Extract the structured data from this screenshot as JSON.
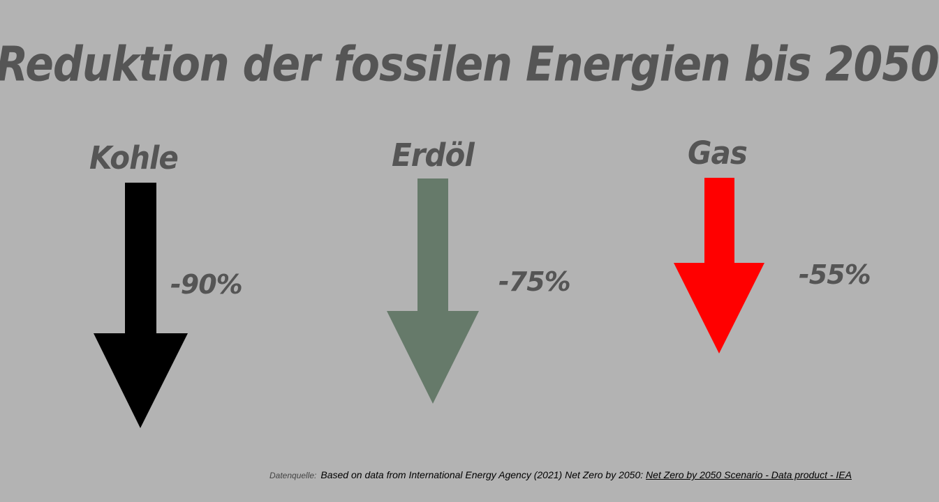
{
  "slide": {
    "title": "Reduktion der fossilen Energien bis 2050"
  },
  "items": [
    {
      "label": "Kohle",
      "reduction": "-90%",
      "color": "#000000"
    },
    {
      "label": "Erdöl",
      "reduction": "-75%",
      "color": "#667a6a"
    },
    {
      "label": "Gas",
      "reduction": "-55%",
      "color": "#ff0000"
    }
  ],
  "source": {
    "label": "Datenquelle:",
    "text": "Based on data from International Energy Agency (2021) Net Zero by 2050: ",
    "link_text": "Net Zero by 2050 Scenario - Data product - IEA"
  }
}
